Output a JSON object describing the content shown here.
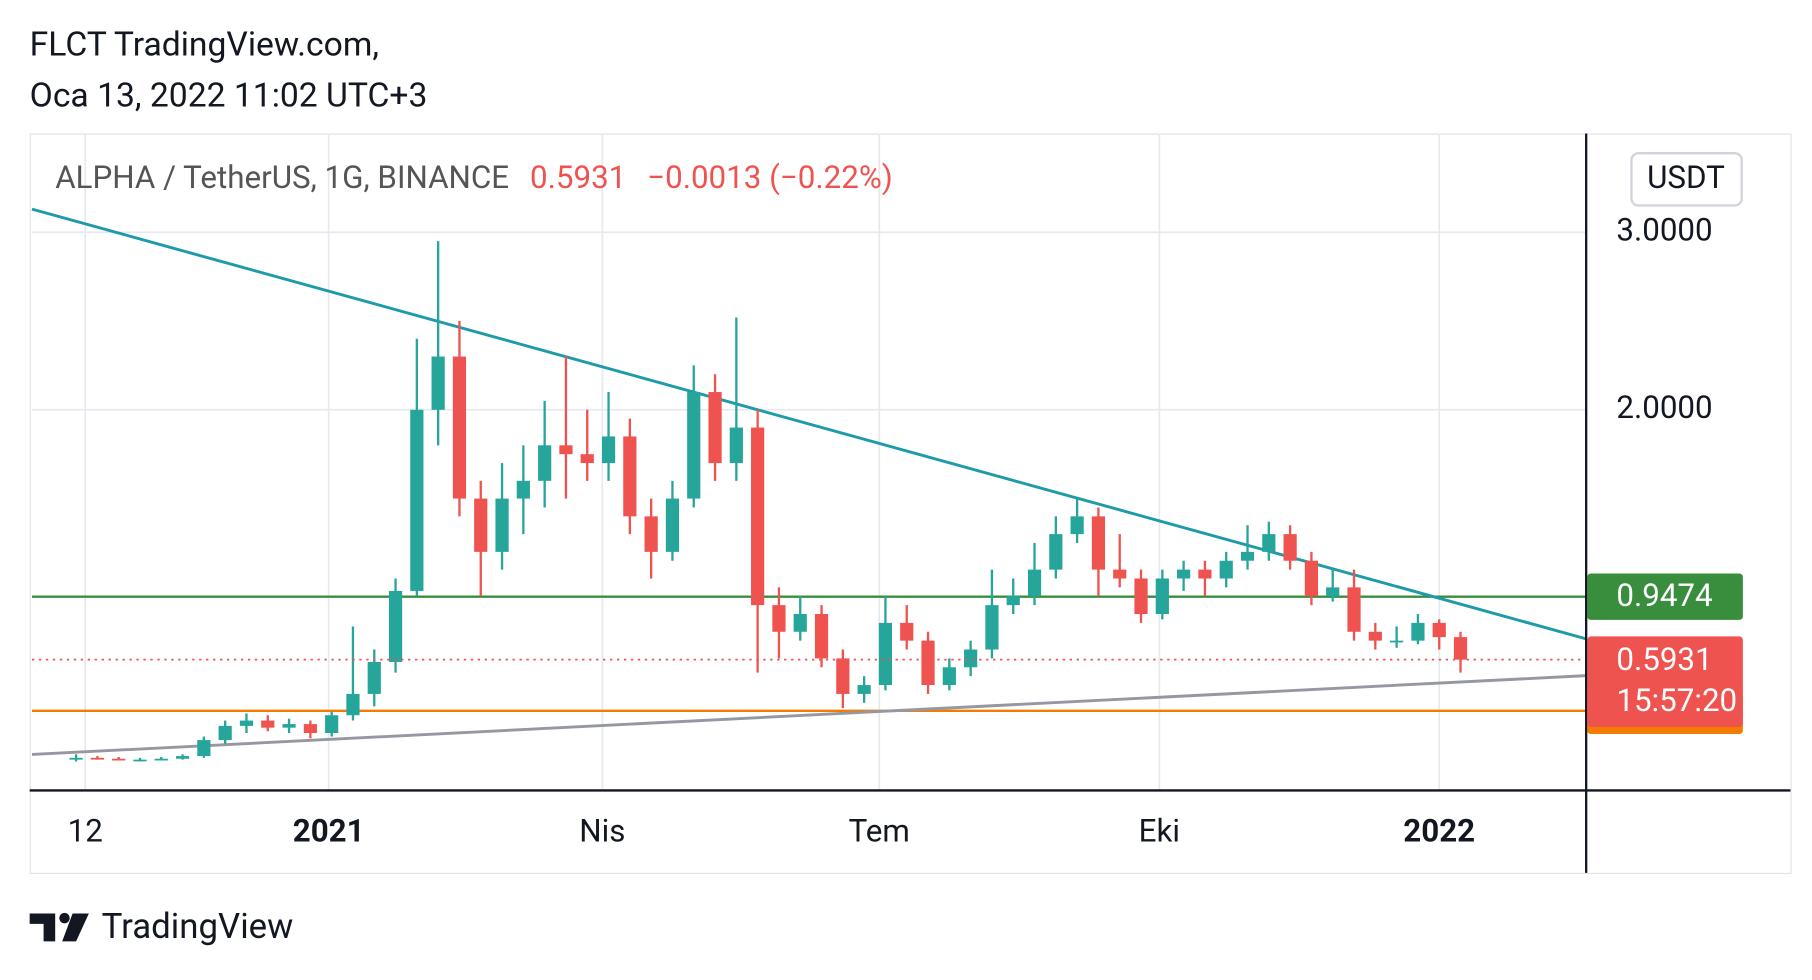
{
  "header": {
    "line1": "FLCT TradingView.com,",
    "line2": "Oca 13, 2022 11:02 UTC+3"
  },
  "chart_data": {
    "type": "candlestick",
    "symbol": "ALPHA / TetherUS, 1G, BINANCE",
    "change_label": "−0.0013 (−0.22%)",
    "currency": "USDT",
    "last_price": 0.5931,
    "countdown": "15:57:20",
    "up_color": "#26a69a",
    "down_color": "#ef5350",
    "xlim": [
      -2.07,
      70.9
    ],
    "xticks": [
      {
        "value": 0.43,
        "label": "12"
      },
      {
        "value": 11.86,
        "label": "2021"
      },
      {
        "value": 24.71,
        "label": "Nis"
      },
      {
        "value": 37.71,
        "label": "Tem"
      },
      {
        "value": 50.86,
        "label": "Eki"
      },
      {
        "value": 64.0,
        "label": "2022"
      }
    ],
    "ylim": [
      -0.137,
      3.556
    ],
    "yticks": [
      {
        "value": 3,
        "label": "3.0000"
      },
      {
        "value": 2,
        "label": "2.0000"
      }
    ],
    "grid": true,
    "open": [
      0.03,
      0.04,
      0.035,
      0.03,
      0.03,
      0.035,
      0.05,
      0.14,
      0.22,
      0.25,
      0.21,
      0.23,
      0.18,
      0.28,
      0.4,
      0.58,
      0.98,
      2.0,
      2.3,
      1.5,
      1.2,
      1.5,
      1.6,
      1.8,
      1.75,
      1.7,
      1.85,
      1.4,
      1.2,
      1.5,
      2.1,
      1.7,
      1.9,
      0.9,
      0.75,
      0.85,
      0.6,
      0.4,
      0.45,
      0.8,
      0.7,
      0.45,
      0.55,
      0.65,
      0.9,
      0.95,
      1.1,
      1.3,
      1.4,
      1.1,
      1.05,
      0.85,
      1.05,
      1.1,
      1.05,
      1.15,
      1.2,
      1.3,
      1.15,
      0.95,
      1.0,
      0.75,
      0.7,
      0.7,
      0.8,
      0.72
    ],
    "high": [
      0.06,
      0.05,
      0.045,
      0.04,
      0.045,
      0.06,
      0.16,
      0.25,
      0.29,
      0.28,
      0.26,
      0.25,
      0.3,
      0.78,
      0.65,
      1.05,
      2.4,
      2.95,
      2.5,
      1.6,
      1.7,
      1.8,
      2.05,
      2.3,
      2.0,
      2.1,
      1.95,
      1.5,
      1.6,
      2.25,
      2.2,
      2.52,
      2.0,
      1.0,
      0.95,
      0.9,
      0.65,
      0.5,
      0.95,
      0.9,
      0.75,
      0.6,
      0.7,
      1.1,
      1.05,
      1.25,
      1.4,
      1.5,
      1.45,
      1.3,
      1.1,
      1.1,
      1.15,
      1.15,
      1.2,
      1.35,
      1.37,
      1.35,
      1.2,
      1.1,
      1.1,
      0.8,
      0.78,
      0.85,
      0.82,
      0.75
    ],
    "low": [
      0.02,
      0.03,
      0.025,
      0.02,
      0.025,
      0.03,
      0.04,
      0.12,
      0.18,
      0.19,
      0.18,
      0.15,
      0.16,
      0.25,
      0.33,
      0.52,
      0.95,
      1.8,
      1.4,
      0.95,
      1.1,
      1.3,
      1.45,
      1.5,
      1.6,
      1.6,
      1.3,
      1.05,
      1.15,
      1.45,
      1.6,
      1.6,
      0.52,
      0.6,
      0.7,
      0.55,
      0.32,
      0.35,
      0.42,
      0.65,
      0.4,
      0.42,
      0.5,
      0.6,
      0.85,
      0.9,
      1.05,
      1.25,
      0.95,
      1.0,
      0.8,
      0.82,
      0.98,
      0.95,
      1.0,
      1.1,
      1.15,
      1.1,
      0.9,
      0.92,
      0.7,
      0.65,
      0.66,
      0.68,
      0.65,
      0.52
    ],
    "close": [
      0.04,
      0.035,
      0.03,
      0.03,
      0.035,
      0.05,
      0.14,
      0.22,
      0.25,
      0.21,
      0.23,
      0.18,
      0.28,
      0.4,
      0.58,
      0.98,
      2.0,
      2.3,
      1.5,
      1.2,
      1.5,
      1.6,
      1.8,
      1.75,
      1.7,
      1.85,
      1.4,
      1.2,
      1.5,
      2.1,
      1.7,
      1.9,
      0.9,
      0.75,
      0.85,
      0.6,
      0.4,
      0.45,
      0.8,
      0.7,
      0.45,
      0.55,
      0.65,
      0.9,
      0.95,
      1.1,
      1.3,
      1.4,
      1.1,
      1.05,
      0.85,
      1.05,
      1.1,
      1.05,
      1.15,
      1.2,
      1.3,
      1.15,
      0.95,
      1.0,
      0.75,
      0.7,
      0.7,
      0.8,
      0.72,
      0.5931
    ],
    "levels": [
      {
        "value": 0.9474,
        "color": "#388e3c"
      },
      {
        "value": 0.3051,
        "color": "#f57c00"
      }
    ],
    "trendlines": [
      {
        "points": [
          [
            -2.07,
            3.13
          ],
          [
            70.9,
            0.71
          ]
        ],
        "color": "#1e9aa8"
      },
      {
        "points": [
          [
            -2.07,
            0.059
          ],
          [
            70.9,
            0.503
          ]
        ],
        "color": "#9598a1"
      }
    ]
  },
  "footer": {
    "brand": "TradingView"
  }
}
